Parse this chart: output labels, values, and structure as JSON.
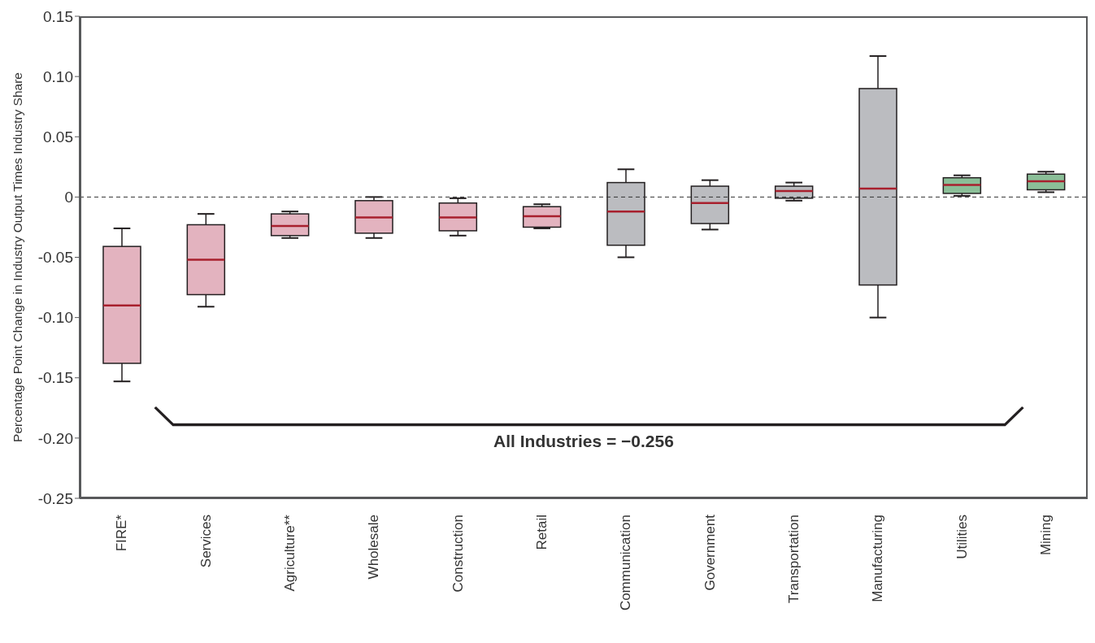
{
  "chart_data": {
    "type": "box",
    "ylabel": "Percentage Point Change in Industry Output Times Industry Share",
    "categories": [
      "FIRE*",
      "Services",
      "Agriculture**",
      "Wholesale",
      "Construction",
      "Retail",
      "Communication",
      "Government",
      "Transportation",
      "Manufacturing",
      "Utilities",
      "Mining"
    ],
    "boxes": [
      {
        "low": -0.153,
        "q1": -0.138,
        "median": -0.09,
        "q3": -0.041,
        "high": -0.026
      },
      {
        "low": -0.091,
        "q1": -0.081,
        "median": -0.052,
        "q3": -0.023,
        "high": -0.014
      },
      {
        "low": -0.034,
        "q1": -0.032,
        "median": -0.024,
        "q3": -0.014,
        "high": -0.012
      },
      {
        "low": -0.034,
        "q1": -0.03,
        "median": -0.017,
        "q3": -0.003,
        "high": 0.0
      },
      {
        "low": -0.032,
        "q1": -0.028,
        "median": -0.017,
        "q3": -0.005,
        "high": -0.001
      },
      {
        "low": -0.026,
        "q1": -0.025,
        "median": -0.016,
        "q3": -0.008,
        "high": -0.006
      },
      {
        "low": -0.05,
        "q1": -0.04,
        "median": -0.012,
        "q3": 0.012,
        "high": 0.023
      },
      {
        "low": -0.027,
        "q1": -0.022,
        "median": -0.005,
        "q3": 0.009,
        "high": 0.014
      },
      {
        "low": -0.003,
        "q1": -0.001,
        "median": 0.005,
        "q3": 0.009,
        "high": 0.012
      },
      {
        "low": -0.1,
        "q1": -0.073,
        "median": 0.007,
        "q3": 0.09,
        "high": 0.117
      },
      {
        "low": 0.001,
        "q1": 0.003,
        "median": 0.01,
        "q3": 0.016,
        "high": 0.018
      },
      {
        "low": 0.004,
        "q1": 0.006,
        "median": 0.013,
        "q3": 0.019,
        "high": 0.021
      }
    ],
    "colors": [
      "#e3b3bf",
      "#e3b3bf",
      "#e3b3bf",
      "#e3b3bf",
      "#e3b3bf",
      "#e3b3bf",
      "#bbbcc0",
      "#bbbcc0",
      "#bbbcc0",
      "#bbbcc0",
      "#8bbf98",
      "#8bbf98"
    ],
    "ylim": [
      -0.25,
      0.15
    ],
    "yticks": [
      0.15,
      {
        "value": 0.1,
        "label": "0.10"
      },
      0.05,
      0,
      -0.05,
      {
        "value": -0.1,
        "label": "-0.10"
      },
      -0.15,
      {
        "value": -0.2,
        "label": "-0.20"
      },
      -0.25
    ],
    "ref_lines": [
      {
        "axis": "y",
        "value": 0,
        "color": "#333333",
        "line_style": "dashed"
      }
    ],
    "annotations": [
      "All Industries = −0.256"
    ],
    "grid": false,
    "legend": false
  }
}
